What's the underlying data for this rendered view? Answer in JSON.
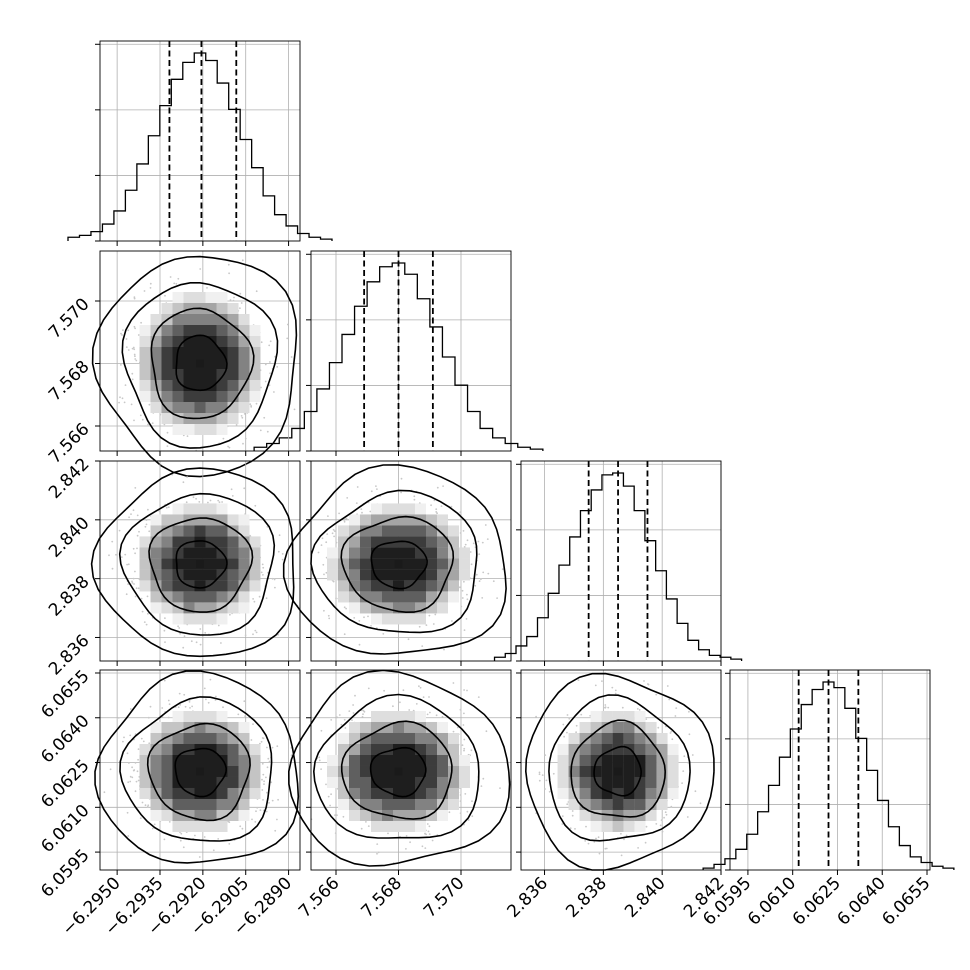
{
  "chart_data": {
    "type": "corner",
    "parameters": [
      {
        "center": -6.2921,
        "sigma": 0.0011,
        "range": [
          -6.2956,
          -6.2886
        ],
        "ticks": [
          -6.295,
          -6.2935,
          -6.292,
          -6.2905,
          -6.289
        ],
        "tick_labels": [
          "−6.2950",
          "−6.2935",
          "−6.2920",
          "−6.2905",
          "−6.2890"
        ],
        "quantiles": [
          -6.29317,
          -6.29205,
          -6.29083
        ]
      },
      {
        "center": 7.568,
        "sigma": 0.0011,
        "range": [
          7.5652,
          7.5716
        ],
        "ticks": [
          7.566,
          7.568,
          7.57
        ],
        "tick_labels": [
          "7.566",
          "7.568",
          "7.570"
        ],
        "quantiles": [
          7.5669,
          7.568,
          7.5691
        ]
      },
      {
        "center": 2.8385,
        "sigma": 0.001,
        "range": [
          2.8352,
          2.842
        ],
        "ticks": [
          2.836,
          2.838,
          2.84,
          2.842
        ],
        "tick_labels": [
          "2.836",
          "2.838",
          "2.840",
          "2.842"
        ],
        "quantiles": [
          2.8375,
          2.8385,
          2.8395
        ]
      },
      {
        "center": 6.0622,
        "sigma": 0.001,
        "range": [
          6.0589,
          6.0656
        ],
        "ticks": [
          6.0595,
          6.061,
          6.0625,
          6.064,
          6.0655
        ],
        "tick_labels": [
          "6.0595",
          "6.0610",
          "6.0625",
          "6.0640",
          "6.0655"
        ],
        "quantiles": [
          6.0612,
          6.0622,
          6.0632
        ]
      }
    ],
    "histograms": [
      [
        2,
        3,
        5,
        9,
        16,
        27,
        41,
        56,
        72,
        86,
        95,
        100,
        96,
        84,
        70,
        54,
        39,
        24,
        14,
        8,
        4,
        2,
        1
      ],
      [
        2,
        4,
        7,
        12,
        21,
        33,
        47,
        62,
        77,
        90,
        98,
        100,
        94,
        81,
        66,
        50,
        35,
        21,
        12,
        7,
        4,
        2,
        1
      ],
      [
        2,
        4,
        8,
        13,
        23,
        36,
        51,
        66,
        80,
        91,
        99,
        100,
        93,
        80,
        64,
        48,
        33,
        20,
        11,
        6,
        3,
        2,
        1
      ],
      [
        1,
        3,
        6,
        11,
        19,
        31,
        45,
        60,
        75,
        88,
        96,
        100,
        97,
        86,
        70,
        53,
        37,
        23,
        13,
        7,
        4,
        2,
        1
      ]
    ],
    "histogram_yticks": 3,
    "contour_levels_sigma": [
      0.5,
      1.0,
      1.5,
      2.0
    ],
    "grid": true,
    "colors": {
      "line": "#000000",
      "grid": "#b0b0b0",
      "scatter": "#c8c8c8",
      "density_max": "#1a1a1a"
    }
  }
}
